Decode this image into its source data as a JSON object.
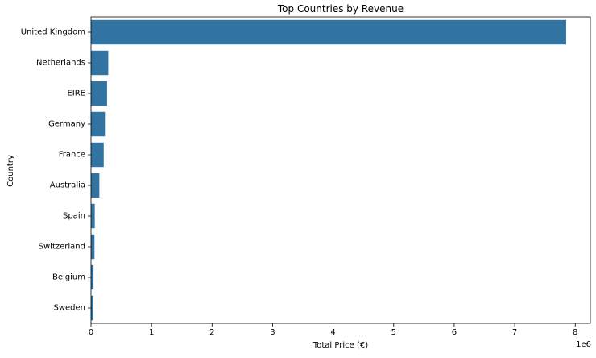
{
  "chart_data": {
    "type": "bar",
    "orientation": "horizontal",
    "title": "Top Countries by Revenue",
    "xlabel": "Total Price (€)",
    "ylabel": "Country",
    "x_offset_label": "1e6",
    "xlim": [
      0,
      8.25
    ],
    "x_ticks": [
      "0",
      "1",
      "2",
      "3",
      "4",
      "5",
      "6",
      "7",
      "8"
    ],
    "grid": false,
    "bar_color": "#3274a1",
    "categories": [
      "United Kingdom",
      "Netherlands",
      "EIRE",
      "Germany",
      "France",
      "Australia",
      "Spain",
      "Switzerland",
      "Belgium",
      "Sweden"
    ],
    "values": [
      7.85,
      0.285,
      0.265,
      0.23,
      0.21,
      0.138,
      0.062,
      0.057,
      0.041,
      0.037
    ]
  }
}
